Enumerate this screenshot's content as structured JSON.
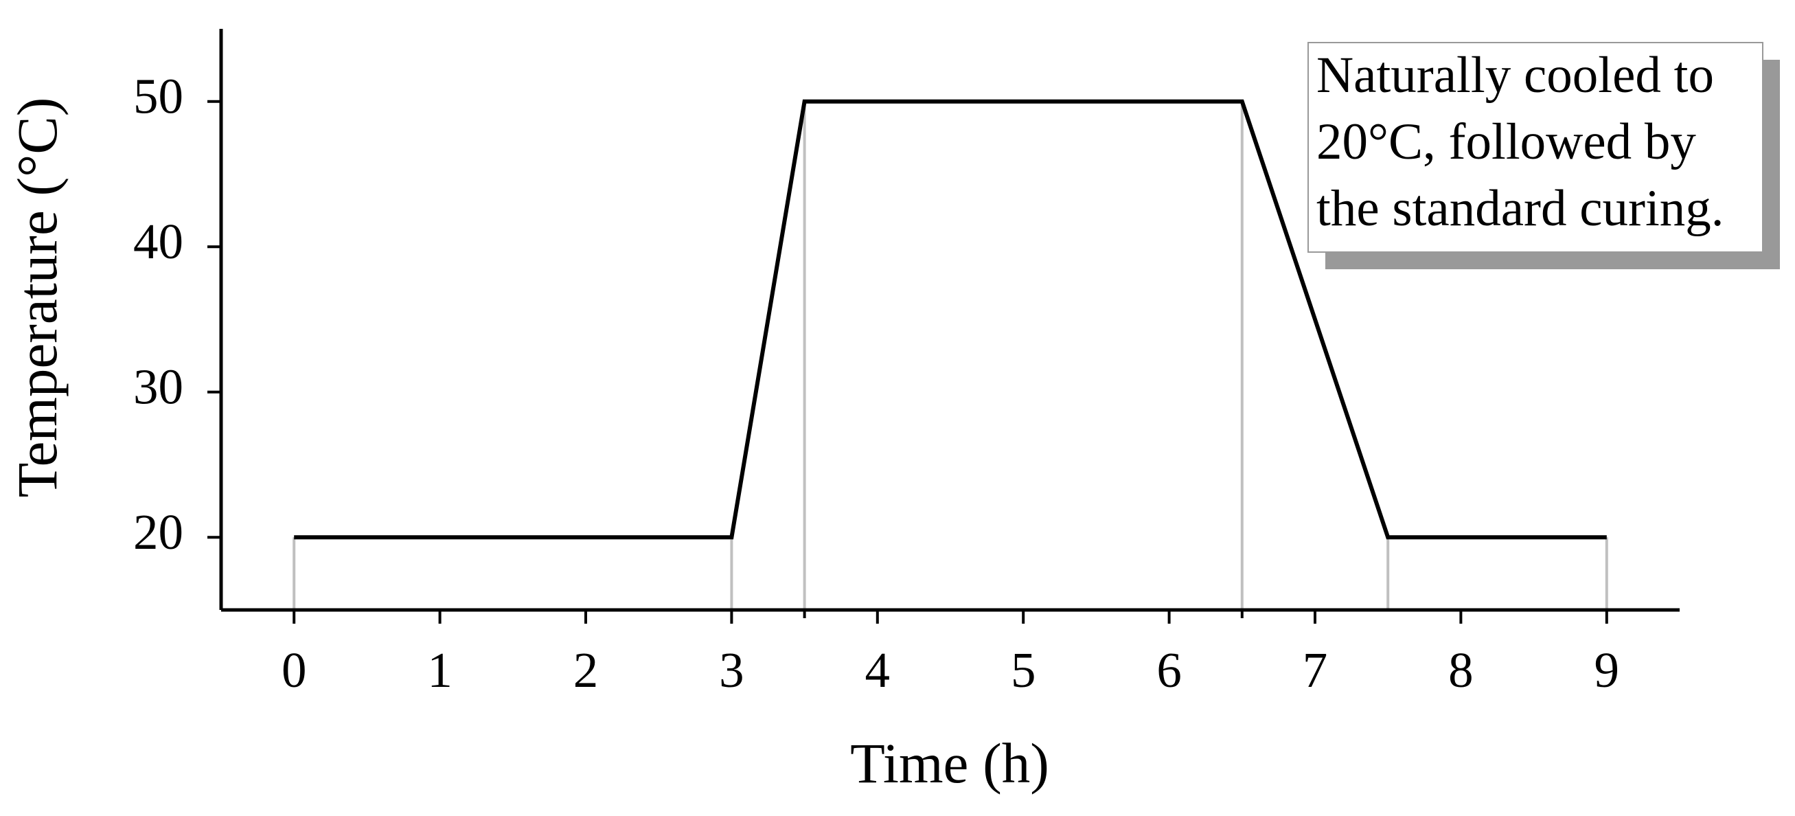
{
  "chart_data": {
    "type": "line",
    "x_label": "Time (h)",
    "y_label": "Temperature (°C)",
    "x": [
      0,
      3,
      3.5,
      6.5,
      7.5,
      9
    ],
    "series": [
      {
        "color": "#000000",
        "values": [
          20,
          20,
          50,
          50,
          20,
          20
        ]
      }
    ],
    "drop_lines": true,
    "drop_line_color": "#c0c0c0",
    "xlim": [
      -0.5,
      9.5
    ],
    "xticks": [
      0,
      1,
      2,
      3,
      4,
      5,
      6,
      7,
      8,
      9
    ],
    "xminorticks": [
      3.5,
      6.5
    ],
    "ylim": [
      15,
      55
    ],
    "yticks": [
      20,
      30,
      40,
      50
    ],
    "annotation": {
      "lines": [
        "Naturally cooled to",
        "20°C, followed by",
        "the standard curing."
      ]
    }
  }
}
